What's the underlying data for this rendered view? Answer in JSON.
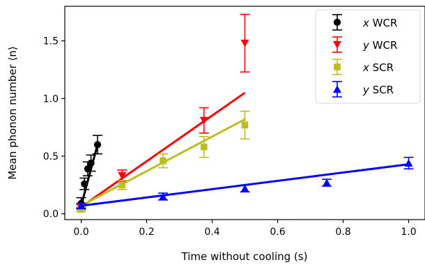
{
  "chart_data": {
    "type": "scatter",
    "title": "",
    "xlabel": "Time without cooling (s)",
    "ylabel": "Mean phonon number ⟨n⟩",
    "xlim": [
      -0.05,
      1.05
    ],
    "ylim": [
      -0.05,
      1.8
    ],
    "x_ticks": [
      "0.0",
      "0.2",
      "0.4",
      "0.6",
      "0.8",
      "1.0"
    ],
    "y_ticks": [
      "0.0",
      "0.5",
      "1.0",
      "1.5"
    ],
    "grid": false,
    "legend_position": "top-right",
    "series": [
      {
        "name_axis": "x",
        "name_rest": " WCR",
        "color": "#000000",
        "marker": "circle",
        "points": [
          {
            "x": 0.0,
            "y": 0.09,
            "err": 0.05
          },
          {
            "x": 0.01,
            "y": 0.26,
            "err": 0.05
          },
          {
            "x": 0.02,
            "y": 0.39,
            "err": 0.06
          },
          {
            "x": 0.03,
            "y": 0.44,
            "err": 0.07
          },
          {
            "x": 0.05,
            "y": 0.6,
            "err": 0.08
          }
        ],
        "fit": [
          [
            0.0,
            0.07
          ],
          [
            0.05,
            0.6
          ]
        ]
      },
      {
        "name_axis": "y",
        "name_rest": " WCR",
        "color": "#ff0000",
        "marker": "triangle-down",
        "points": [
          {
            "x": 0.0,
            "y": 0.05,
            "err": 0.03
          },
          {
            "x": 0.125,
            "y": 0.33,
            "err": 0.05
          },
          {
            "x": 0.375,
            "y": 0.81,
            "err": 0.11
          },
          {
            "x": 0.5,
            "y": 1.48,
            "err": 0.25
          }
        ],
        "fit": [
          [
            0.0,
            0.06
          ],
          [
            0.5,
            1.05
          ]
        ]
      },
      {
        "name_axis": "x",
        "name_rest": " SCR",
        "color": "#bcbd22",
        "marker": "square",
        "points": [
          {
            "x": 0.0,
            "y": 0.04,
            "err": 0.02
          },
          {
            "x": 0.125,
            "y": 0.25,
            "err": 0.04
          },
          {
            "x": 0.25,
            "y": 0.46,
            "err": 0.06
          },
          {
            "x": 0.375,
            "y": 0.58,
            "err": 0.09
          },
          {
            "x": 0.5,
            "y": 0.77,
            "err": 0.12
          }
        ],
        "fit": [
          [
            0.0,
            0.07
          ],
          [
            0.5,
            0.82
          ]
        ]
      },
      {
        "name_axis": "y",
        "name_rest": " SCR",
        "color": "#0000ff",
        "marker": "triangle-up",
        "points": [
          {
            "x": 0.0,
            "y": 0.07,
            "err": 0.02
          },
          {
            "x": 0.25,
            "y": 0.15,
            "err": 0.03
          },
          {
            "x": 0.5,
            "y": 0.22,
            "err": 0.03
          },
          {
            "x": 0.75,
            "y": 0.27,
            "err": 0.03
          },
          {
            "x": 1.0,
            "y": 0.44,
            "err": 0.05
          }
        ],
        "fit": [
          [
            0.0,
            0.07
          ],
          [
            1.0,
            0.43
          ]
        ]
      }
    ]
  }
}
